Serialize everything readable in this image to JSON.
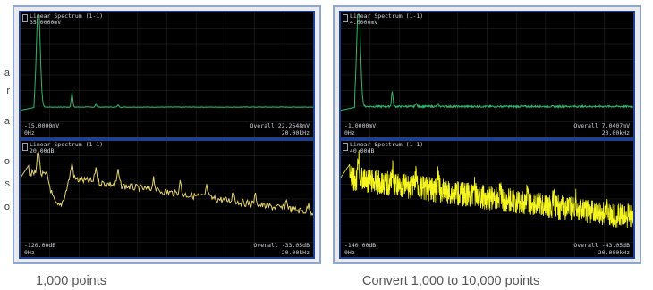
{
  "colors": {
    "trace_top": "#2fb86a",
    "trace_bottom_left": "#e3d36a",
    "trace_bottom_right": "#f5f520",
    "grid": "#2a2a2a",
    "frame_blue": "#1f3f8f"
  },
  "margin_glyphs": [
    "a",
    "r",
    "a",
    "o",
    "s",
    "o"
  ],
  "left_view": {
    "top": {
      "title": "Linear Spectrum (1-1)",
      "ymax": "35.0000mV",
      "ymin": "-15.0000mV",
      "xmin": "0Hz",
      "overall": "Overall 22.2648mV",
      "xmax": "20.00kHz"
    },
    "bottom": {
      "title": "Linear Spectrum (1-1)",
      "ymax": "20.00dB",
      "ymin": "-120.00dB",
      "xmin": "0Hz",
      "overall": "Overall -33.05dB",
      "xmax": "20.00kHz"
    },
    "caption": "1,000 points"
  },
  "right_view": {
    "top": {
      "title": "Linear Spectrum (1-1)",
      "ymax": "4.0000mV",
      "ymin": "-1.0000mV",
      "xmin": "0Hz",
      "overall": "Overall 7.0407mV",
      "xmax": "20.00kHz"
    },
    "bottom": {
      "title": "Linear Spectrum (1-1)",
      "ymax": "40.00dB",
      "ymin": "-140.00dB",
      "xmin": "0Hz",
      "overall": "Overall -43.05dB",
      "xmax": "20.000kHz"
    },
    "caption": "Convert 1,000 to 10,000 points"
  }
}
